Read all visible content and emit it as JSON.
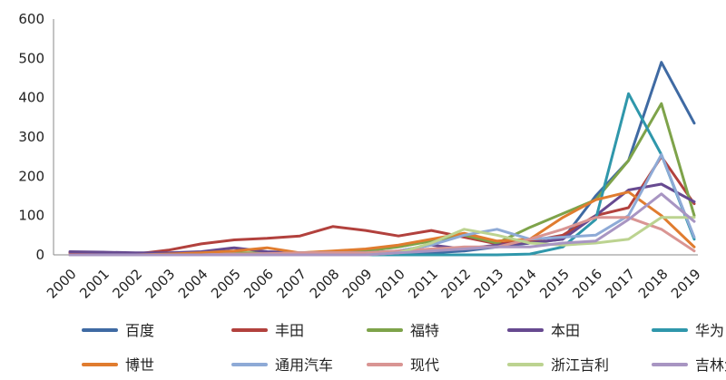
{
  "chart_data": {
    "type": "line",
    "title": "",
    "xlabel": "",
    "ylabel": "",
    "ylim": [
      0,
      600
    ],
    "yticks": [
      0,
      100,
      200,
      300,
      400,
      500,
      600
    ],
    "grid": false,
    "legend_position": "bottom",
    "x": [
      "2000",
      "2001",
      "2002",
      "2003",
      "2004",
      "2005",
      "2006",
      "2007",
      "2008",
      "2009",
      "2010",
      "2011",
      "2012",
      "2013",
      "2014",
      "2015",
      "2016",
      "2017",
      "2018",
      "2019"
    ],
    "series": [
      {
        "name": "百度",
        "color": "#3f6aa3",
        "values": [
          0,
          0,
          0,
          0,
          0,
          0,
          0,
          0,
          0,
          0,
          0,
          5,
          10,
          20,
          30,
          40,
          150,
          240,
          490,
          335
        ]
      },
      {
        "name": "丰田",
        "color": "#b2413d",
        "values": [
          5,
          5,
          2,
          12,
          28,
          38,
          42,
          48,
          72,
          62,
          48,
          62,
          45,
          28,
          35,
          50,
          100,
          120,
          250,
          130
        ]
      },
      {
        "name": "福特",
        "color": "#7ea34a",
        "values": [
          0,
          0,
          0,
          0,
          2,
          5,
          5,
          5,
          8,
          10,
          20,
          35,
          50,
          30,
          70,
          105,
          140,
          240,
          385,
          100
        ]
      },
      {
        "name": "本田",
        "color": "#674a90",
        "values": [
          8,
          7,
          5,
          5,
          8,
          18,
          8,
          5,
          5,
          5,
          10,
          25,
          15,
          25,
          30,
          40,
          100,
          165,
          180,
          135
        ]
      },
      {
        "name": "华为",
        "color": "#2f97ab",
        "values": [
          0,
          0,
          0,
          0,
          0,
          0,
          0,
          0,
          0,
          0,
          0,
          0,
          0,
          0,
          2,
          20,
          90,
          410,
          255,
          40
        ]
      },
      {
        "name": "博世",
        "color": "#e07c2f",
        "values": [
          0,
          0,
          0,
          2,
          5,
          10,
          18,
          5,
          10,
          15,
          25,
          40,
          55,
          35,
          40,
          95,
          140,
          160,
          100,
          20
        ]
      },
      {
        "name": "通用汽车",
        "color": "#8eaad6",
        "values": [
          0,
          0,
          0,
          0,
          0,
          2,
          3,
          5,
          5,
          5,
          10,
          25,
          50,
          65,
          40,
          45,
          50,
          100,
          255,
          45
        ]
      },
      {
        "name": "现代",
        "color": "#d99593",
        "values": [
          0,
          0,
          0,
          0,
          0,
          2,
          3,
          5,
          5,
          5,
          10,
          15,
          20,
          20,
          40,
          65,
          95,
          95,
          65,
          10
        ]
      },
      {
        "name": "浙江吉利",
        "color": "#bcd390",
        "values": [
          0,
          0,
          0,
          0,
          0,
          0,
          0,
          0,
          0,
          0,
          5,
          30,
          65,
          50,
          30,
          25,
          30,
          40,
          95,
          95
        ]
      },
      {
        "name": "吉林大学",
        "color": "#a895c2",
        "values": [
          0,
          0,
          0,
          0,
          0,
          0,
          0,
          0,
          0,
          0,
          5,
          10,
          15,
          20,
          20,
          30,
          35,
          90,
          155,
          85
        ]
      }
    ]
  }
}
